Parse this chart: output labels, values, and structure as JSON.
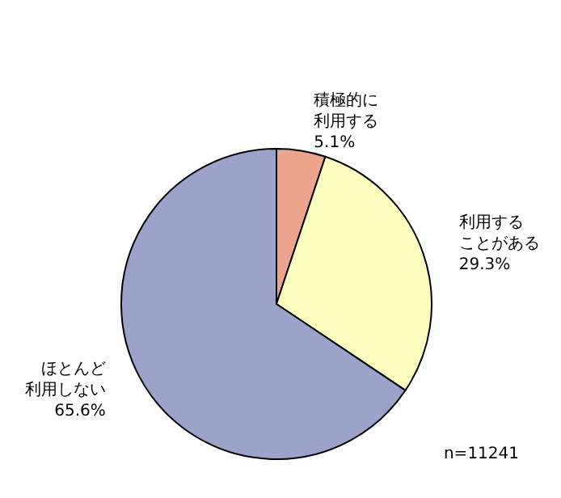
{
  "chart_data": {
    "type": "pie",
    "categories": [
      "積極的に利用する",
      "利用することがある",
      "ほとんど利用しない"
    ],
    "values": [
      5.1,
      29.3,
      65.6
    ],
    "value_labels": [
      "5.1%",
      "29.3%",
      "65.6%"
    ],
    "colors": [
      "#eca48c",
      "#ffffc0",
      "#9ba3cb"
    ],
    "legend": false,
    "annotations": [
      "n=11241"
    ]
  }
}
